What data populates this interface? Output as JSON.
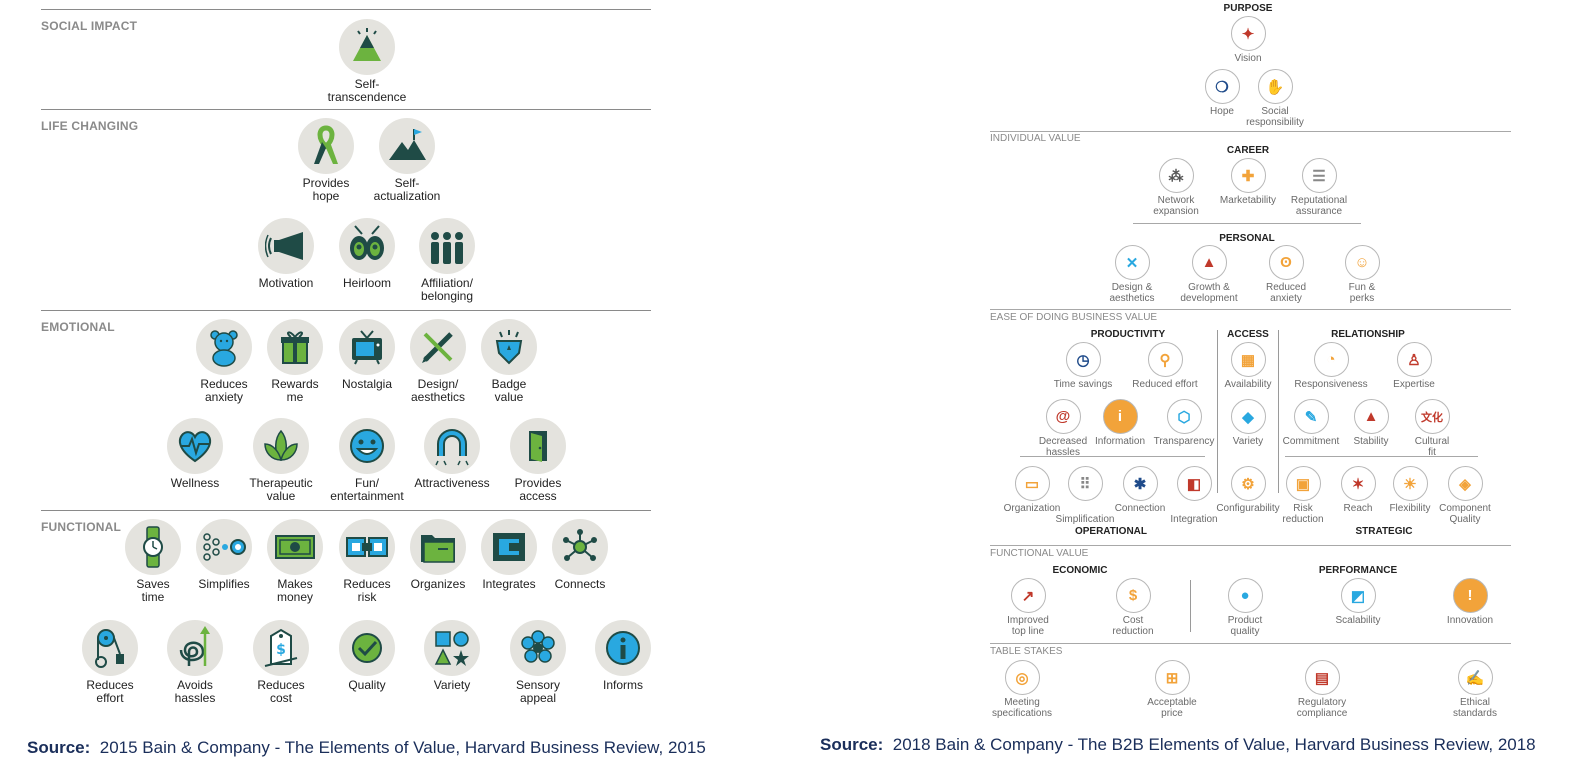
{
  "colors": {
    "dark": "#1f4b46",
    "green": "#6cb33f",
    "blue": "#29a8e0",
    "circle": "#e4e3de",
    "orange": "#f2a33a",
    "source": "#1a2e5a"
  },
  "b2c": {
    "sections": {
      "social": "SOCIAL IMPACT",
      "life": "LIFE CHANGING",
      "emotional": "EMOTIONAL",
      "functional": "FUNCTIONAL"
    },
    "elements": [
      {
        "label": "Self-\ntranscendence",
        "icon": "pyramid-icon"
      },
      {
        "label": "Provides\nhope",
        "icon": "ribbon-icon"
      },
      {
        "label": "Self-\nactualization",
        "icon": "mountain-flag-icon"
      },
      {
        "label": "Motivation",
        "icon": "megaphone-icon"
      },
      {
        "label": "Heirloom",
        "icon": "heirloom-icon"
      },
      {
        "label": "Affiliation/\nbelonging",
        "icon": "people-icon"
      },
      {
        "label": "Reduces\nanxiety",
        "icon": "teddy-bear-icon"
      },
      {
        "label": "Rewards\nme",
        "icon": "gift-icon"
      },
      {
        "label": "Nostalgia",
        "icon": "tv-icon"
      },
      {
        "label": "Design/\naesthetics",
        "icon": "pencil-icon"
      },
      {
        "label": "Badge\nvalue",
        "icon": "badge-icon"
      },
      {
        "label": "Wellness",
        "icon": "heart-pulse-icon"
      },
      {
        "label": "Therapeutic\nvalue",
        "icon": "leaf-icon"
      },
      {
        "label": "Fun/\nentertainment",
        "icon": "smiley-icon"
      },
      {
        "label": "Attractiveness",
        "icon": "magnet-icon"
      },
      {
        "label": "Provides\naccess",
        "icon": "door-icon"
      },
      {
        "label": "Saves\ntime",
        "icon": "watch-icon"
      },
      {
        "label": "Simplifies",
        "icon": "dots-icon"
      },
      {
        "label": "Makes\nmoney",
        "icon": "money-icon"
      },
      {
        "label": "Reduces\nrisk",
        "icon": "puzzle-icon"
      },
      {
        "label": "Organizes",
        "icon": "folder-icon"
      },
      {
        "label": "Integrates",
        "icon": "integrate-icon"
      },
      {
        "label": "Connects",
        "icon": "network-icon"
      },
      {
        "label": "Reduces\neffort",
        "icon": "pulley-icon"
      },
      {
        "label": "Avoids\nhassles",
        "icon": "spiral-icon"
      },
      {
        "label": "Reduces\ncost",
        "icon": "price-tag-icon"
      },
      {
        "label": "Quality",
        "icon": "check-icon"
      },
      {
        "label": "Variety",
        "icon": "shapes-icon"
      },
      {
        "label": "Sensory\nappeal",
        "icon": "flower-icon"
      },
      {
        "label": "Informs",
        "icon": "info-icon"
      }
    ]
  },
  "b2b": {
    "sections": {
      "individual": "INDIVIDUAL VALUE",
      "ease": "EASE OF DOING BUSINESS VALUE",
      "functional": "FUNCTIONAL VALUE",
      "table": "TABLE STAKES"
    },
    "subs": {
      "purpose": "PURPOSE",
      "career": "CAREER",
      "personal": "PERSONAL",
      "productivity": "PRODUCTIVITY",
      "access": "ACCESS",
      "relationship": "RELATIONSHIP",
      "operational": "OPERATIONAL",
      "strategic": "STRATEGIC",
      "economic": "ECONOMIC",
      "performance": "PERFORMANCE"
    },
    "elements": [
      {
        "label": "Vision",
        "glyph": "✦"
      },
      {
        "label": "Hope",
        "glyph": "❍"
      },
      {
        "label": "Social\nresponsibility",
        "glyph": "✋"
      },
      {
        "label": "Network\nexpansion",
        "glyph": "⁂"
      },
      {
        "label": "Marketability",
        "glyph": "✚"
      },
      {
        "label": "Reputational\nassurance",
        "glyph": "☰"
      },
      {
        "label": "Design &\naesthetics",
        "glyph": "✕"
      },
      {
        "label": "Growth &\ndevelopment",
        "glyph": "▲"
      },
      {
        "label": "Reduced\nanxiety",
        "glyph": "ʘ"
      },
      {
        "label": "Fun &\nperks",
        "glyph": "☺"
      },
      {
        "label": "Time savings",
        "glyph": "◷"
      },
      {
        "label": "Reduced effort",
        "glyph": "⚲"
      },
      {
        "label": "Availability",
        "glyph": "▦"
      },
      {
        "label": "Responsiveness",
        "glyph": "◔"
      },
      {
        "label": "Expertise",
        "glyph": "♙"
      },
      {
        "label": "Decreased\nhassles",
        "glyph": "@"
      },
      {
        "label": "Information",
        "glyph": "i"
      },
      {
        "label": "Transparency",
        "glyph": "⬡"
      },
      {
        "label": "Variety",
        "glyph": "◆"
      },
      {
        "label": "Commitment",
        "glyph": "✎"
      },
      {
        "label": "Stability",
        "glyph": "▲"
      },
      {
        "label": "Cultural\nfit",
        "glyph": "文化"
      },
      {
        "label": "Organization",
        "glyph": "▭"
      },
      {
        "label": "Simplification",
        "glyph": "⠿"
      },
      {
        "label": "Connection",
        "glyph": "✱"
      },
      {
        "label": "Integration",
        "glyph": "◧"
      },
      {
        "label": "Configurability",
        "glyph": "⚙"
      },
      {
        "label": "Risk\nreduction",
        "glyph": "▣"
      },
      {
        "label": "Reach",
        "glyph": "✶"
      },
      {
        "label": "Flexibility",
        "glyph": "☀"
      },
      {
        "label": "Component\nQuality",
        "glyph": "◈"
      },
      {
        "label": "Improved\ntop line",
        "glyph": "↗"
      },
      {
        "label": "Cost\nreduction",
        "glyph": "$"
      },
      {
        "label": "Product\nquality",
        "glyph": "●"
      },
      {
        "label": "Scalability",
        "glyph": "◩"
      },
      {
        "label": "Innovation",
        "glyph": "!"
      },
      {
        "label": "Meeting\nspecifications",
        "glyph": "◎"
      },
      {
        "label": "Acceptable\nprice",
        "glyph": "⊞"
      },
      {
        "label": "Regulatory\ncompliance",
        "glyph": "▤"
      },
      {
        "label": "Ethical\nstandards",
        "glyph": "✍"
      }
    ]
  },
  "sources": [
    {
      "label": "Source:",
      "text": "2015 Bain & Company - The Elements of Value, Harvard Business Review, 2015"
    },
    {
      "label": "Source:",
      "text": "2018 Bain & Company - The B2B Elements of Value, Harvard Business Review, 2018"
    }
  ]
}
